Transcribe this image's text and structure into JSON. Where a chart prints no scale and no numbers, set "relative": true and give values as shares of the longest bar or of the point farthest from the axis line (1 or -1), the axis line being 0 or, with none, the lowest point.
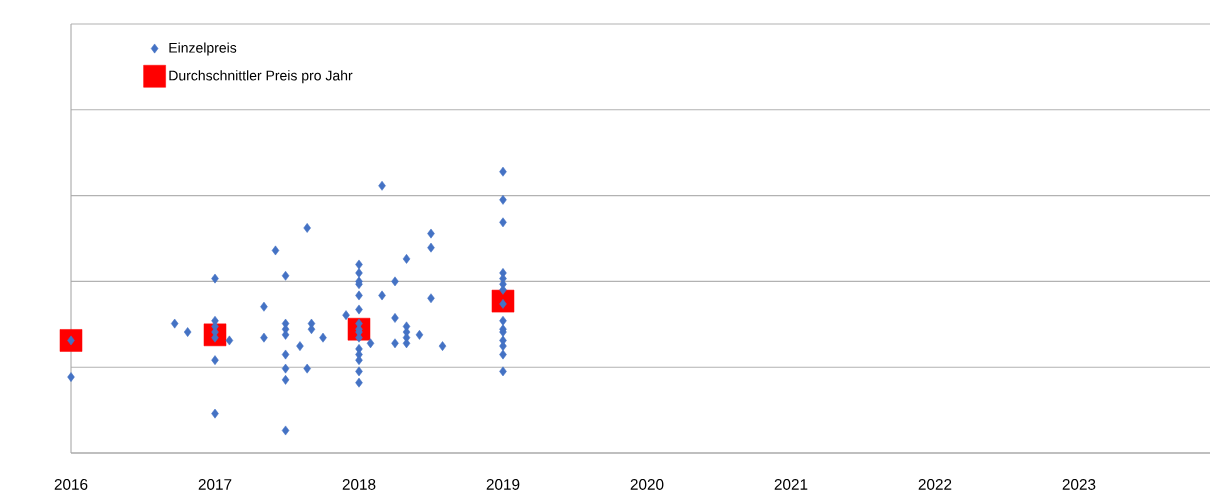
{
  "chart_data": {
    "type": "scatter",
    "relative": true,
    "grid": "y",
    "legend": "top left",
    "tick_labels": "x",
    "xlim": [
      2016,
      2023.91
    ],
    "xticks": [
      2016,
      2017,
      2018,
      2019,
      2020,
      2021,
      2022,
      2023
    ],
    "series": [
      {
        "name": "Einzelpreis",
        "color": "#4472c4",
        "marker": "diamond",
        "x": [
          2016,
          2016,
          2016.72,
          2016.81,
          2017,
          2017,
          2017,
          2017,
          2017,
          2017,
          2017,
          2017.1,
          2017.34,
          2017.34,
          2017.42,
          2017.49,
          2017.49,
          2017.49,
          2017.49,
          2017.49,
          2017.49,
          2017.49,
          2017.49,
          2017.59,
          2017.64,
          2017.64,
          2017.67,
          2017.67,
          2017.75,
          2017.91,
          2018,
          2018,
          2018,
          2018,
          2018,
          2018,
          2018,
          2018,
          2018,
          2018,
          2018,
          2018,
          2018,
          2018,
          2018,
          2018.08,
          2018.16,
          2018.16,
          2018.25,
          2018.25,
          2018.25,
          2018.33,
          2018.33,
          2018.33,
          2018.33,
          2018.33,
          2018.42,
          2018.5,
          2018.5,
          2018.5,
          2018.58,
          2019,
          2019,
          2019,
          2019,
          2019,
          2019,
          2019,
          2019,
          2019,
          2019,
          2019,
          2019,
          2019,
          2019,
          2019
        ],
        "values": [
          0.4,
          0.27,
          0.46,
          0.43,
          0.62,
          0.47,
          0.45,
          0.43,
          0.41,
          0.33,
          0.14,
          0.4,
          0.52,
          0.41,
          0.72,
          0.63,
          0.46,
          0.44,
          0.42,
          0.35,
          0.3,
          0.26,
          0.08,
          0.38,
          0.8,
          0.3,
          0.46,
          0.44,
          0.41,
          0.49,
          0.67,
          0.64,
          0.61,
          0.6,
          0.56,
          0.51,
          0.46,
          0.44,
          0.43,
          0.41,
          0.37,
          0.35,
          0.33,
          0.29,
          0.25,
          0.39,
          0.95,
          0.56,
          0.61,
          0.48,
          0.39,
          0.69,
          0.45,
          0.43,
          0.41,
          0.39,
          0.42,
          0.78,
          0.73,
          0.55,
          0.38,
          1.0,
          0.9,
          0.82,
          0.64,
          0.62,
          0.6,
          0.58,
          0.53,
          0.47,
          0.44,
          0.43,
          0.4,
          0.38,
          0.35,
          0.29
        ]
      },
      {
        "name": "Durchschnittler Preis pro Jahr",
        "color": "#ff0000",
        "marker": "square",
        "x": [
          2016,
          2017,
          2018,
          2019
        ],
        "values": [
          0.4,
          0.42,
          0.44,
          0.54
        ]
      }
    ]
  }
}
